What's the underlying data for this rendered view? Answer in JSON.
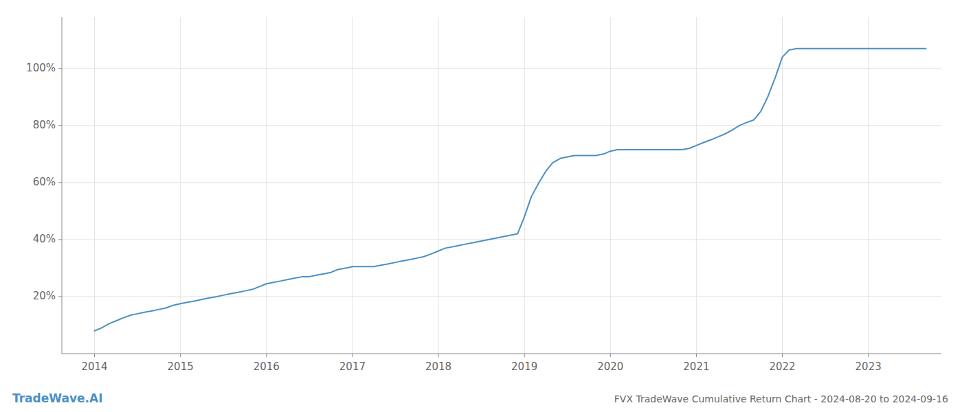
{
  "chart_data": {
    "type": "line",
    "title": "FVX TradeWave Cumulative Return Chart - 2024-08-20 to 2024-09-16",
    "annotations": [
      "TradeWave.AI"
    ],
    "color": "#4a90c4",
    "grid": true,
    "x": [
      2014.0,
      2014.08,
      2014.17,
      2014.25,
      2014.33,
      2014.42,
      2014.5,
      2014.58,
      2014.67,
      2014.75,
      2014.83,
      2014.92,
      2015.0,
      2015.08,
      2015.17,
      2015.25,
      2015.33,
      2015.42,
      2015.5,
      2015.58,
      2015.67,
      2015.75,
      2015.83,
      2015.92,
      2016.0,
      2016.08,
      2016.17,
      2016.25,
      2016.33,
      2016.42,
      2016.5,
      2016.58,
      2016.67,
      2016.75,
      2016.83,
      2016.92,
      2017.0,
      2017.08,
      2017.17,
      2017.25,
      2017.33,
      2017.42,
      2017.5,
      2017.58,
      2017.67,
      2017.75,
      2017.83,
      2017.92,
      2018.0,
      2018.08,
      2018.17,
      2018.25,
      2018.33,
      2018.42,
      2018.5,
      2018.58,
      2018.67,
      2018.75,
      2018.83,
      2018.92,
      2019.0,
      2019.08,
      2019.17,
      2019.25,
      2019.33,
      2019.42,
      2019.5,
      2019.58,
      2019.67,
      2019.75,
      2019.83,
      2019.92,
      2020.0,
      2020.08,
      2020.17,
      2020.25,
      2020.33,
      2020.42,
      2020.5,
      2020.58,
      2020.67,
      2020.75,
      2020.83,
      2020.92,
      2021.0,
      2021.08,
      2021.17,
      2021.25,
      2021.33,
      2021.42,
      2021.5,
      2021.58,
      2021.67,
      2021.75,
      2021.83,
      2021.92,
      2022.0,
      2022.08,
      2022.17,
      2022.25,
      2022.33,
      2022.42,
      2022.5,
      2022.58,
      2022.67,
      2022.75,
      2022.83,
      2022.92,
      2023.0,
      2023.08,
      2023.17,
      2023.25,
      2023.33,
      2023.42,
      2023.5,
      2023.58,
      2023.67
    ],
    "values": [
      8.0,
      9.0,
      10.5,
      11.5,
      12.5,
      13.5,
      14.0,
      14.5,
      15.0,
      15.5,
      16.0,
      17.0,
      17.5,
      18.0,
      18.5,
      19.0,
      19.5,
      20.0,
      20.5,
      21.0,
      21.5,
      22.0,
      22.5,
      23.5,
      24.5,
      25.0,
      25.5,
      26.0,
      26.5,
      27.0,
      27.0,
      27.5,
      28.0,
      28.5,
      29.5,
      30.0,
      30.5,
      30.5,
      30.5,
      30.5,
      31.0,
      31.5,
      32.0,
      32.5,
      33.0,
      33.5,
      34.0,
      35.0,
      36.0,
      37.0,
      37.5,
      38.0,
      38.5,
      39.0,
      39.5,
      40.0,
      40.5,
      41.0,
      41.5,
      42.0,
      48.0,
      55.0,
      60.0,
      64.0,
      67.0,
      68.5,
      69.0,
      69.5,
      69.5,
      69.5,
      69.5,
      70.0,
      71.0,
      71.5,
      71.5,
      71.5,
      71.5,
      71.5,
      71.5,
      71.5,
      71.5,
      71.5,
      71.5,
      72.0,
      73.0,
      74.0,
      75.0,
      76.0,
      77.0,
      78.5,
      80.0,
      81.0,
      82.0,
      85.0,
      90.0,
      97.0,
      104.0,
      106.5,
      107.0,
      107.0,
      107.0,
      107.0,
      107.0,
      107.0,
      107.0,
      107.0,
      107.0,
      107.0,
      107.0,
      107.0,
      107.0,
      107.0,
      107.0,
      107.0,
      107.0,
      107.0,
      107.0
    ],
    "xlim": [
      2013.62,
      2023.85
    ],
    "xticks": [
      2014,
      2015,
      2016,
      2017,
      2018,
      2019,
      2020,
      2021,
      2022,
      2023
    ],
    "ylim": [
      0,
      118
    ],
    "yticks": [
      {
        "value": 20,
        "label": "20%"
      },
      {
        "value": 40,
        "label": "40%"
      },
      {
        "value": 60,
        "label": "60%"
      },
      {
        "value": 80,
        "label": "80%"
      },
      {
        "value": 100,
        "label": "100%"
      }
    ]
  }
}
